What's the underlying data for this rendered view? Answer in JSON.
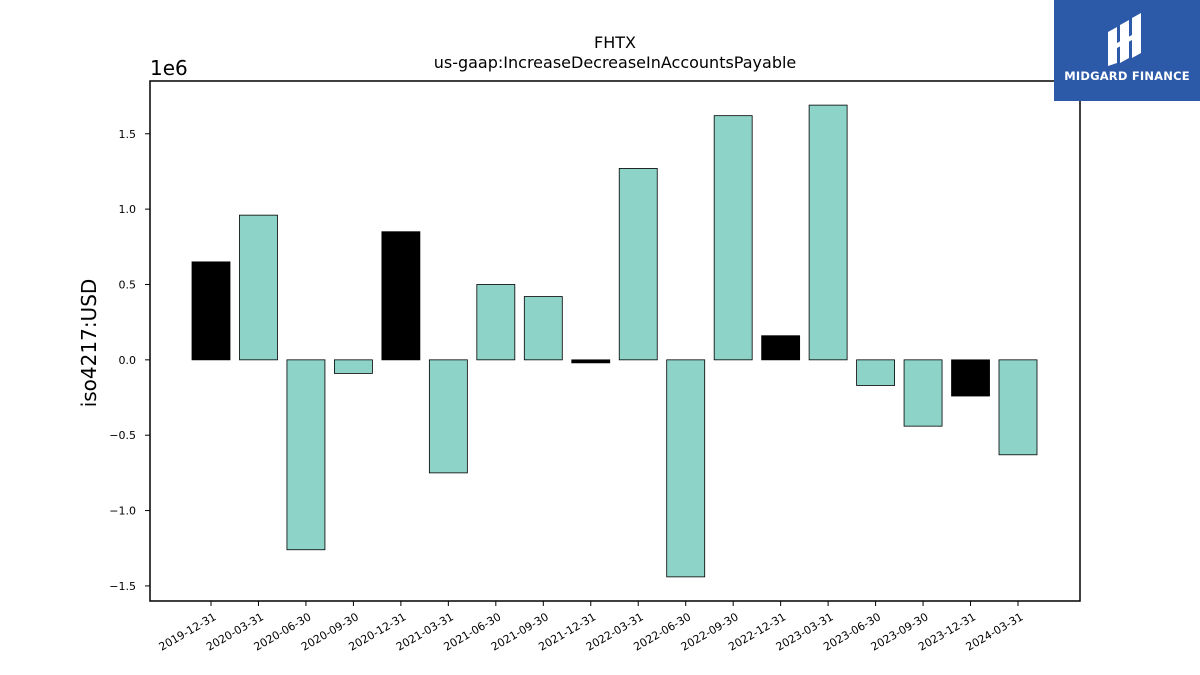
{
  "chart_data": {
    "type": "bar",
    "title": "FHTX",
    "subtitle": "us-gaap:IncreaseDecreaseInAccountsPayable",
    "ylabel": "iso4217:USD",
    "xlabel": "",
    "y_scale_label": "1e6",
    "ylim": [
      -1.6,
      1.85
    ],
    "yticks": [
      -1.5,
      -1.0,
      -0.5,
      0.0,
      0.5,
      1.0,
      1.5
    ],
    "ytick_labels": [
      "−1.5",
      "−1.0",
      "−0.5",
      "0.0",
      "0.5",
      "1.0",
      "1.5"
    ],
    "categories": [
      "2019-12-31",
      "2020-03-31",
      "2020-06-30",
      "2020-09-30",
      "2020-12-31",
      "2021-03-31",
      "2021-06-30",
      "2021-09-30",
      "2021-12-31",
      "2022-03-31",
      "2022-06-30",
      "2022-09-30",
      "2022-12-31",
      "2023-03-31",
      "2023-06-30",
      "2023-09-30",
      "2023-12-31",
      "2024-03-31"
    ],
    "values": [
      0.65,
      0.96,
      -1.26,
      -0.09,
      0.85,
      -0.75,
      0.5,
      0.42,
      -0.02,
      1.27,
      -1.44,
      1.62,
      0.16,
      1.69,
      -0.17,
      -0.44,
      -0.24,
      -0.63
    ],
    "bar_colors": [
      "#000000",
      "#8dd3c7",
      "#8dd3c7",
      "#8dd3c7",
      "#000000",
      "#8dd3c7",
      "#8dd3c7",
      "#8dd3c7",
      "#000000",
      "#8dd3c7",
      "#8dd3c7",
      "#8dd3c7",
      "#000000",
      "#8dd3c7",
      "#8dd3c7",
      "#8dd3c7",
      "#000000",
      "#8dd3c7"
    ],
    "grid": false
  },
  "logo": {
    "text": "MIDGARD FINANCE"
  }
}
